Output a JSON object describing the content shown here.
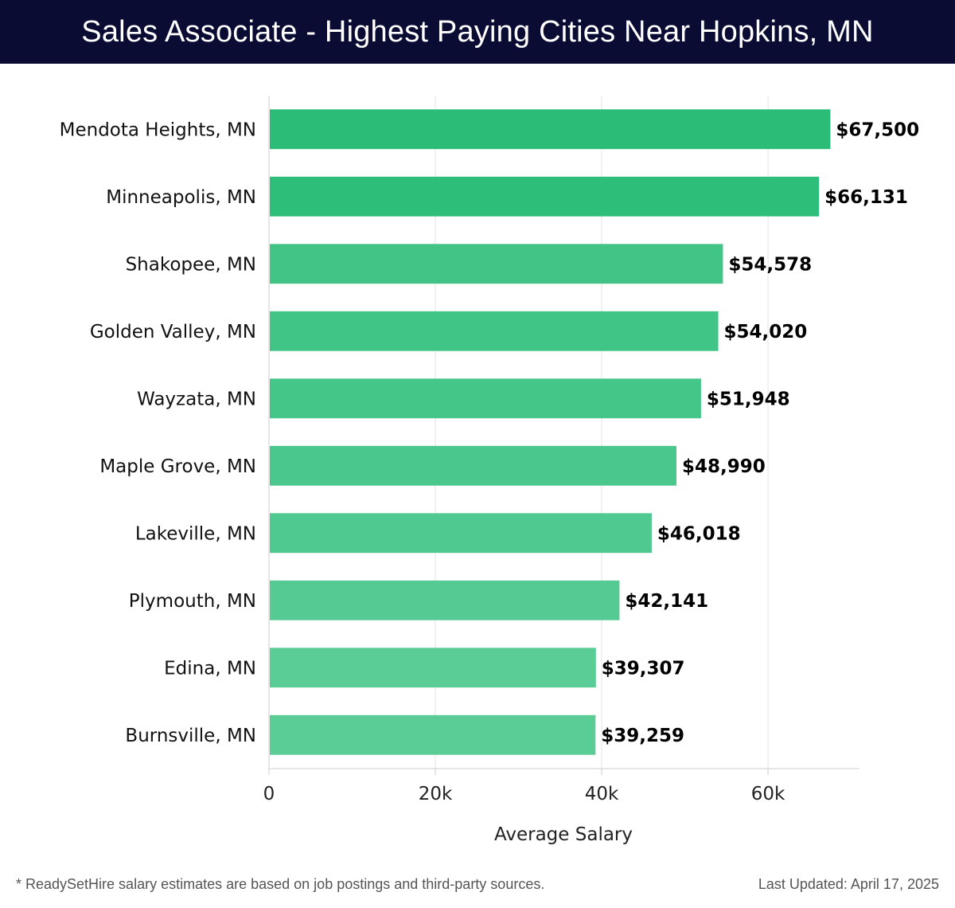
{
  "header": {
    "title": "Sales Associate - Highest Paying Cities Near Hopkins, MN"
  },
  "chart_data": {
    "type": "bar",
    "orientation": "horizontal",
    "categories": [
      "Mendota Heights, MN",
      "Minneapolis, MN",
      "Shakopee, MN",
      "Golden Valley, MN",
      "Wayzata, MN",
      "Maple Grove, MN",
      "Lakeville, MN",
      "Plymouth, MN",
      "Edina, MN",
      "Burnsville, MN"
    ],
    "values": [
      67500,
      66131,
      54578,
      54020,
      51948,
      48990,
      46018,
      42141,
      39307,
      39259
    ],
    "value_labels": [
      "$67,500",
      "$66,131",
      "$54,578",
      "$54,020",
      "$51,948",
      "$48,990",
      "$46,018",
      "$42,141",
      "$39,307",
      "$39,259"
    ],
    "xlabel": "Average Salary",
    "xticks": [
      0,
      20000,
      40000,
      60000
    ],
    "xtick_labels": [
      "0",
      "20k",
      "40k",
      "60k"
    ],
    "xlim": [
      0,
      71000
    ],
    "grid": "vertical",
    "bar_color_high": "#2bbd78",
    "bar_color_low": "#5acd96"
  },
  "footer": {
    "note": "* ReadySetHire salary estimates are based on job postings and third-party sources.",
    "updated": "Last Updated: April 17, 2025"
  }
}
